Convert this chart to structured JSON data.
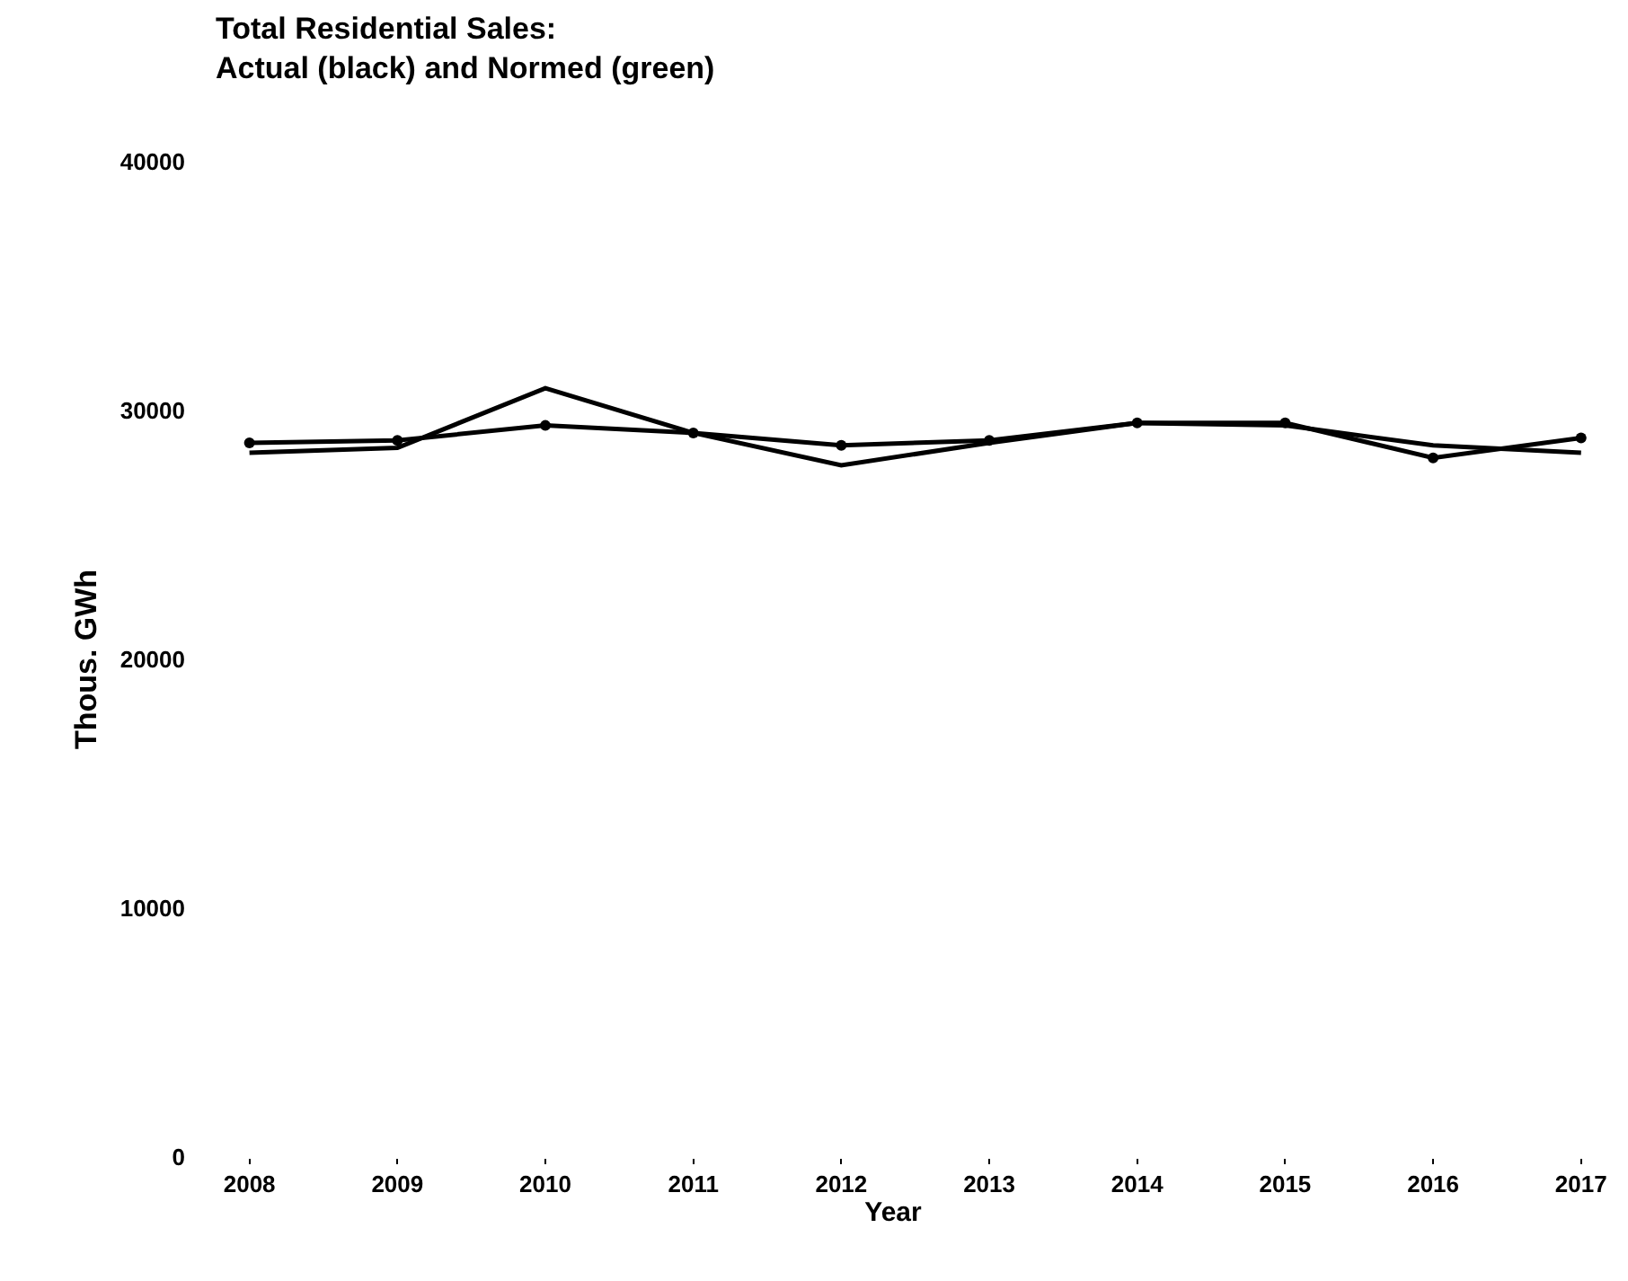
{
  "chart_data": {
    "type": "line",
    "title": "Total Residential Sales:\nActual (black) and Normed (green)",
    "xlabel": "Year",
    "ylabel": "Thous. GWh",
    "categories": [
      "2008",
      "2009",
      "2010",
      "2011",
      "2012",
      "2013",
      "2014",
      "2015",
      "2016",
      "2017"
    ],
    "series": [
      {
        "color": "#000000",
        "marker": "circle",
        "values": [
          28700,
          28800,
          29400,
          29100,
          28600,
          28800,
          29500,
          29500,
          28100,
          28900
        ]
      },
      {
        "color": "#000000",
        "marker": "none",
        "values": [
          28300,
          28500,
          30900,
          29100,
          27800,
          28700,
          29500,
          29400,
          28600,
          28300
        ]
      }
    ],
    "ylim": [
      0,
      40000
    ],
    "yticks": [
      0,
      10000,
      20000,
      30000,
      40000
    ],
    "line_style": "solid"
  }
}
